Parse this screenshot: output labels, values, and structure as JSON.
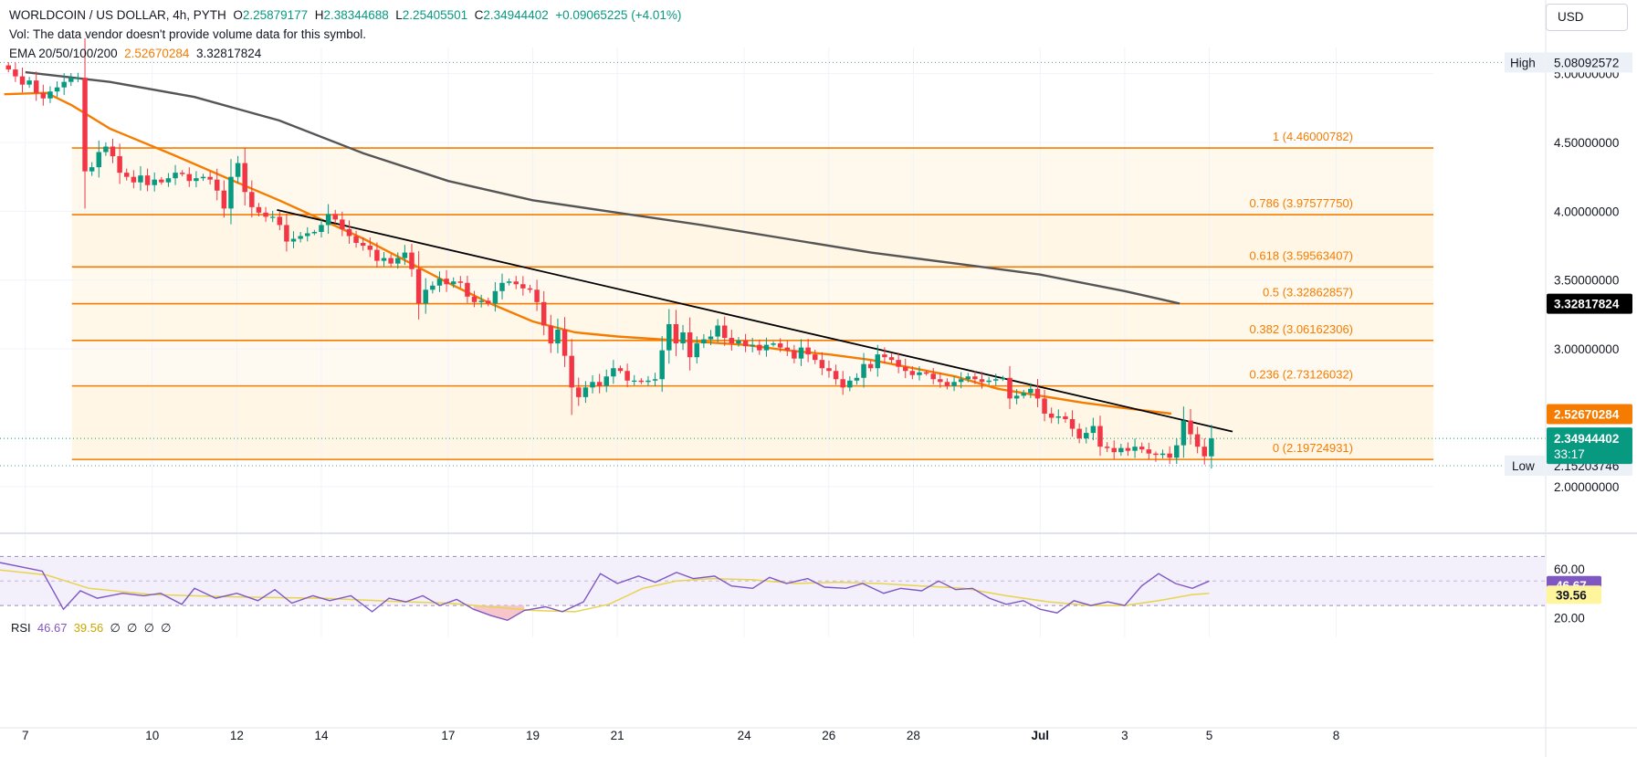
{
  "header": {
    "symbol": "WORLDCOIN / US DOLLAR, 4h, PYTH",
    "o_label": "O",
    "o_value": "2.25879177",
    "h_label": "H",
    "h_value": "2.38344688",
    "l_label": "L",
    "l_value": "2.25405501",
    "c_label": "C",
    "c_value": "2.34944402",
    "change": "+0.09065225 (+4.01%)",
    "vol_note": "Vol: The data vendor doesn't provide volume data for this symbol.",
    "ema_label": "EMA 20/50/100/200",
    "ema_value_1": "2.52670284",
    "ema_value_2": "3.32817824"
  },
  "currency_button": "USD",
  "colors": {
    "up": "#089981",
    "down": "#f23645",
    "fib": "#f57c00",
    "ema50": "#f57c00",
    "ema200": "#555555",
    "rsi": "#7e57c2",
    "rsi_ma": "#e8d44d"
  },
  "chart_data": {
    "type": "candlestick",
    "title": "WORLDCOIN / US DOLLAR, 4h, PYTH",
    "ylim": [
      1.82,
      5.15
    ],
    "y_ticks": [
      {
        "value": 5.0,
        "label": "5.00000000"
      },
      {
        "value": 4.5,
        "label": "4.50000000"
      },
      {
        "value": 4.0,
        "label": "4.00000000"
      },
      {
        "value": 3.5,
        "label": "3.50000000"
      },
      {
        "value": 3.0,
        "label": "3.00000000"
      },
      {
        "value": 2.0,
        "label": "2.00000000"
      }
    ],
    "x_ticks": [
      {
        "day": 7,
        "label": "7"
      },
      {
        "day": 10,
        "label": "10"
      },
      {
        "day": 12,
        "label": "12"
      },
      {
        "day": 14,
        "label": "14"
      },
      {
        "day": 17,
        "label": "17"
      },
      {
        "day": 19,
        "label": "19"
      },
      {
        "day": 21,
        "label": "21"
      },
      {
        "day": 24,
        "label": "24"
      },
      {
        "day": 26,
        "label": "26"
      },
      {
        "day": 28,
        "label": "28"
      },
      {
        "day": 31,
        "label": "Jul",
        "bold": true
      },
      {
        "day": 33,
        "label": "3"
      },
      {
        "day": 35,
        "label": "5"
      },
      {
        "day": 38,
        "label": "8"
      }
    ],
    "x_range_days": [
      6.4,
      40.3
    ],
    "fib_levels": [
      {
        "ratio": "1",
        "value": 4.46000782,
        "label": "1 (4.46000782)"
      },
      {
        "ratio": "0.786",
        "value": 3.9757775,
        "label": "0.786 (3.97577750)"
      },
      {
        "ratio": "0.618",
        "value": 3.59563407,
        "label": "0.618 (3.59563407)"
      },
      {
        "ratio": "0.5",
        "value": 3.32862857,
        "label": "0.5 (3.32862857)"
      },
      {
        "ratio": "0.382",
        "value": 3.06162306,
        "label": "0.382 (3.06162306)"
      },
      {
        "ratio": "0.236",
        "value": 2.73126032,
        "label": "0.236 (2.73126032)"
      },
      {
        "ratio": "0",
        "value": 2.19724931,
        "label": "0 (2.19724931)"
      }
    ],
    "fib_start_day": 8.1,
    "fib_end_day": 40.3,
    "high": {
      "label": "High",
      "value": 5.08092572,
      "text": "5.08092572"
    },
    "low": {
      "label": "Low",
      "value": 2.15203746,
      "text": "2.15203746"
    },
    "current": {
      "value": 2.34944402,
      "text": "2.34944402",
      "countdown": "33:17"
    },
    "ema50_tag": {
      "value": 2.52670284,
      "text": "2.52670284"
    },
    "ema200_tag": {
      "value": 3.32817824,
      "text": "3.32817824"
    },
    "trendline": {
      "start": {
        "day": 12.95,
        "value": 4.01
      },
      "end": {
        "day": 35.55,
        "value": 2.4
      }
    },
    "closes": [
      5.03,
      4.98,
      4.92,
      4.95,
      4.86,
      4.82,
      4.87,
      4.9,
      4.94,
      4.97,
      4.97,
      4.29,
      4.32,
      4.43,
      4.47,
      4.4,
      4.28,
      4.25,
      4.21,
      4.26,
      4.19,
      4.23,
      4.21,
      4.24,
      4.28,
      4.27,
      4.22,
      4.24,
      4.25,
      4.23,
      4.15,
      4.02,
      4.25,
      4.35,
      4.14,
      4.03,
      3.99,
      3.96,
      3.96,
      3.9,
      3.78,
      3.8,
      3.82,
      3.84,
      3.85,
      3.9,
      3.98,
      3.94,
      3.87,
      3.82,
      3.77,
      3.75,
      3.72,
      3.64,
      3.66,
      3.62,
      3.66,
      3.7,
      3.58,
      3.33,
      3.43,
      3.46,
      3.51,
      3.47,
      3.49,
      3.48,
      3.38,
      3.34,
      3.35,
      3.33,
      3.42,
      3.48,
      3.49,
      3.47,
      3.44,
      3.43,
      3.34,
      3.17,
      3.04,
      3.14,
      2.95,
      2.72,
      2.65,
      2.72,
      2.76,
      2.73,
      2.8,
      2.86,
      2.84,
      2.77,
      2.77,
      2.76,
      2.77,
      2.78,
      2.99,
      3.18,
      3.04,
      3.12,
      2.94,
      3.04,
      3.07,
      3.09,
      3.17,
      3.08,
      3.04,
      3.06,
      3.02,
      3.03,
      2.99,
      3.03,
      3.04,
      3.01,
      2.99,
      2.93,
      3.01,
      2.96,
      2.92,
      2.86,
      2.84,
      2.78,
      2.72,
      2.77,
      2.79,
      2.89,
      2.86,
      2.96,
      2.94,
      2.92,
      2.87,
      2.84,
      2.81,
      2.83,
      2.82,
      2.78,
      2.76,
      2.73,
      2.76,
      2.78,
      2.8,
      2.78,
      2.76,
      2.77,
      2.78,
      2.79,
      2.64,
      2.66,
      2.68,
      2.71,
      2.64,
      2.53,
      2.5,
      2.51,
      2.49,
      2.42,
      2.35,
      2.39,
      2.44,
      2.29,
      2.28,
      2.25,
      2.28,
      2.26,
      2.29,
      2.27,
      2.24,
      2.23,
      2.24,
      2.21,
      2.3,
      2.48,
      2.38,
      2.29,
      2.22,
      2.35
    ],
    "ema200_series": [
      [
        7,
        5.01
      ],
      [
        9,
        4.94
      ],
      [
        11,
        4.83
      ],
      [
        13,
        4.66
      ],
      [
        15,
        4.42
      ],
      [
        17,
        4.22
      ],
      [
        19,
        4.08
      ],
      [
        21,
        3.99
      ],
      [
        23,
        3.9
      ],
      [
        25,
        3.8
      ],
      [
        27,
        3.7
      ],
      [
        29,
        3.62
      ],
      [
        31,
        3.54
      ],
      [
        33,
        3.42
      ],
      [
        34.3,
        3.33
      ]
    ],
    "ema50_series": [
      [
        6.5,
        4.85
      ],
      [
        7.5,
        4.86
      ],
      [
        8.1,
        4.77
      ],
      [
        9,
        4.6
      ],
      [
        10.5,
        4.41
      ],
      [
        12,
        4.21
      ],
      [
        13,
        4.08
      ],
      [
        14,
        3.94
      ],
      [
        15,
        3.8
      ],
      [
        16,
        3.64
      ],
      [
        17,
        3.48
      ],
      [
        18,
        3.33
      ],
      [
        19,
        3.2
      ],
      [
        20,
        3.12
      ],
      [
        21,
        3.09
      ],
      [
        22,
        3.07
      ],
      [
        23,
        3.05
      ],
      [
        24,
        3.03
      ],
      [
        25,
        2.99
      ],
      [
        26,
        2.96
      ],
      [
        27,
        2.92
      ],
      [
        28,
        2.86
      ],
      [
        29,
        2.8
      ],
      [
        30,
        2.71
      ],
      [
        31,
        2.66
      ],
      [
        32,
        2.61
      ],
      [
        33,
        2.57
      ],
      [
        34.1,
        2.53
      ]
    ]
  },
  "rsi": {
    "label": "RSI",
    "value": "46.67",
    "ma_value": "39.56",
    "placeholders": [
      "∅",
      "∅",
      "∅",
      "∅"
    ],
    "range": [
      10,
      80
    ],
    "levels": [
      {
        "value": 60,
        "label": "60.00"
      },
      {
        "value": 20,
        "label": "20.00"
      }
    ],
    "upper_band": 70,
    "lower_band": 30,
    "series": [
      [
        6.4,
        65
      ],
      [
        7.4,
        58
      ],
      [
        7.9,
        27
      ],
      [
        8.3,
        42
      ],
      [
        8.7,
        36
      ],
      [
        9.3,
        40
      ],
      [
        9.8,
        38
      ],
      [
        10.2,
        40
      ],
      [
        10.7,
        31
      ],
      [
        11.0,
        44
      ],
      [
        11.5,
        36
      ],
      [
        12.0,
        40
      ],
      [
        12.5,
        34
      ],
      [
        12.9,
        43
      ],
      [
        13.3,
        32
      ],
      [
        13.8,
        38
      ],
      [
        14.2,
        34
      ],
      [
        14.7,
        38
      ],
      [
        15.2,
        25
      ],
      [
        15.6,
        36
      ],
      [
        16.0,
        33
      ],
      [
        16.4,
        38
      ],
      [
        16.8,
        30
      ],
      [
        17.2,
        35
      ],
      [
        17.6,
        27
      ],
      [
        18.0,
        22
      ],
      [
        18.4,
        18
      ],
      [
        18.8,
        26
      ],
      [
        19.3,
        29
      ],
      [
        19.7,
        25
      ],
      [
        20.2,
        33
      ],
      [
        20.6,
        56
      ],
      [
        21.0,
        48
      ],
      [
        21.5,
        54
      ],
      [
        21.9,
        49
      ],
      [
        22.4,
        57
      ],
      [
        22.8,
        52
      ],
      [
        23.3,
        54
      ],
      [
        23.7,
        46
      ],
      [
        24.2,
        44
      ],
      [
        24.6,
        53
      ],
      [
        25.0,
        48
      ],
      [
        25.5,
        52
      ],
      [
        25.9,
        45
      ],
      [
        26.4,
        44
      ],
      [
        26.8,
        48
      ],
      [
        27.3,
        40
      ],
      [
        27.7,
        44
      ],
      [
        28.2,
        42
      ],
      [
        28.6,
        50
      ],
      [
        29.0,
        43
      ],
      [
        29.4,
        44
      ],
      [
        29.8,
        36
      ],
      [
        30.2,
        31
      ],
      [
        30.6,
        34
      ],
      [
        31.0,
        27
      ],
      [
        31.4,
        24
      ],
      [
        31.8,
        34
      ],
      [
        32.2,
        30
      ],
      [
        32.6,
        33
      ],
      [
        33.0,
        30
      ],
      [
        33.4,
        46
      ],
      [
        33.8,
        56
      ],
      [
        34.2,
        48
      ],
      [
        34.6,
        44
      ],
      [
        35.0,
        50
      ]
    ],
    "ma_series": [
      [
        6.4,
        59
      ],
      [
        7.5,
        55
      ],
      [
        8.5,
        44
      ],
      [
        10,
        39
      ],
      [
        12,
        37
      ],
      [
        14,
        36
      ],
      [
        16,
        33
      ],
      [
        17,
        32
      ],
      [
        18,
        29
      ],
      [
        19,
        26
      ],
      [
        20,
        25
      ],
      [
        20.8,
        31
      ],
      [
        21.6,
        44
      ],
      [
        22.4,
        50
      ],
      [
        23.2,
        52
      ],
      [
        24.2,
        51
      ],
      [
        25.2,
        48
      ],
      [
        26.2,
        49
      ],
      [
        27.2,
        48
      ],
      [
        28.2,
        46
      ],
      [
        29.2,
        44
      ],
      [
        30.2,
        38
      ],
      [
        31.2,
        33
      ],
      [
        32.2,
        30
      ],
      [
        33.0,
        30
      ],
      [
        33.8,
        34
      ],
      [
        34.6,
        39
      ],
      [
        35.0,
        40
      ]
    ]
  }
}
